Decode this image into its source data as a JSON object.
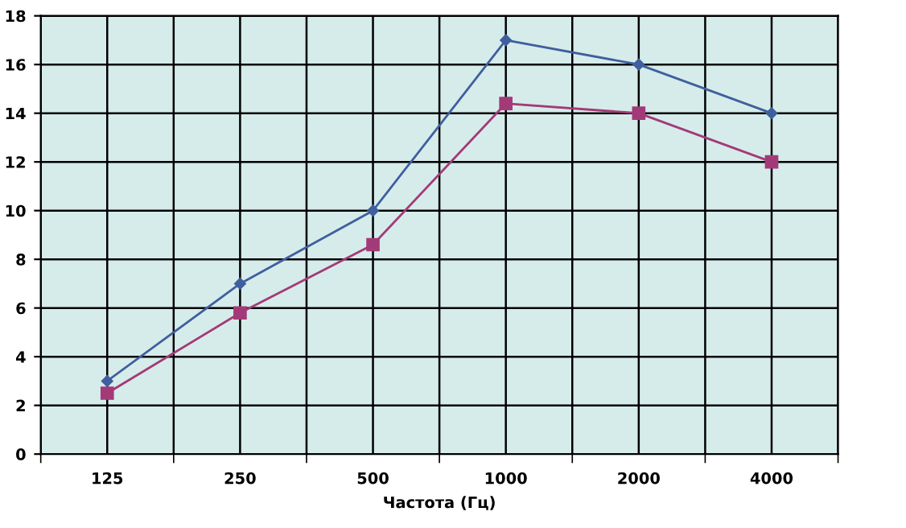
{
  "chart_data": {
    "type": "line",
    "xlabel": "Частота (Гц)",
    "categories": [
      "125",
      "250",
      "500",
      "1000",
      "2000",
      "4000"
    ],
    "series": [
      {
        "color": "#3f5f9e",
        "marker": "diamond",
        "values": [
          3,
          7,
          10,
          17,
          16,
          14
        ]
      },
      {
        "color": "#a33a78",
        "marker": "square",
        "values": [
          2.5,
          5.8,
          8.6,
          14.4,
          14,
          12
        ]
      }
    ],
    "ylim": [
      0,
      18
    ],
    "yticks": [
      0,
      2,
      4,
      6,
      8,
      10,
      12,
      14,
      16,
      18
    ],
    "grid": true,
    "line_style": "solid"
  }
}
